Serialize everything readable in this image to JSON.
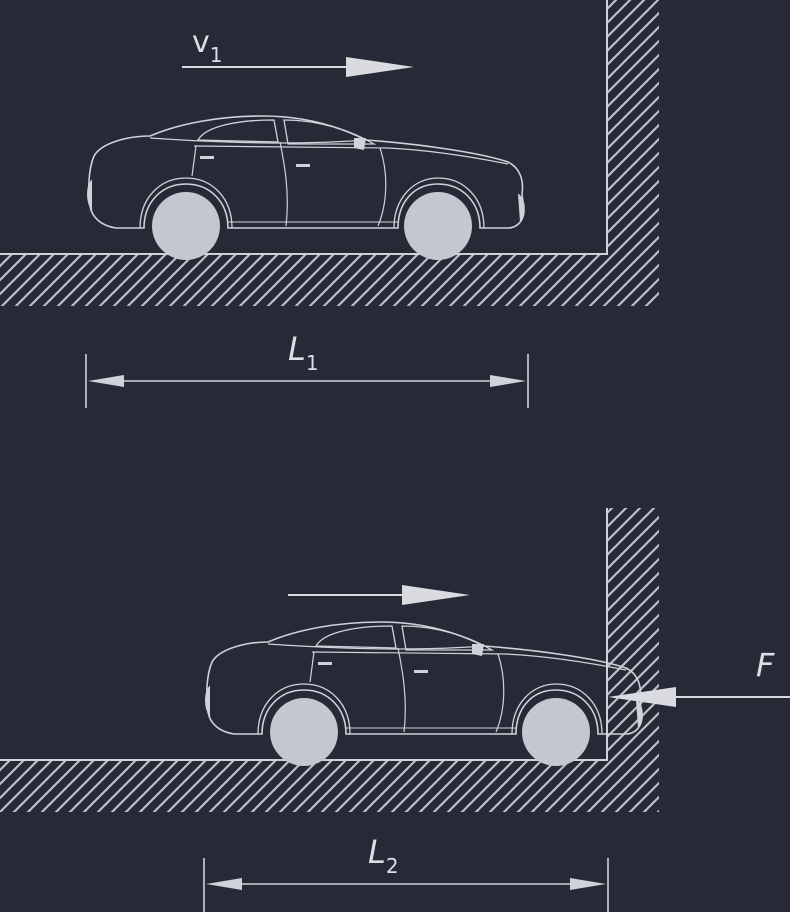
{
  "labels": {
    "velocity": {
      "main": "v",
      "sub": "1"
    },
    "length_before": {
      "main": "L",
      "sub": "1"
    },
    "length_after": {
      "main": "L",
      "sub": "2"
    },
    "force": "F"
  },
  "colors": {
    "background": "#262a36",
    "line": "#cfd2d8",
    "wheel": "#c3c7d0",
    "arrow": "#d9dbe1",
    "hatch": "#bcc0c8"
  }
}
